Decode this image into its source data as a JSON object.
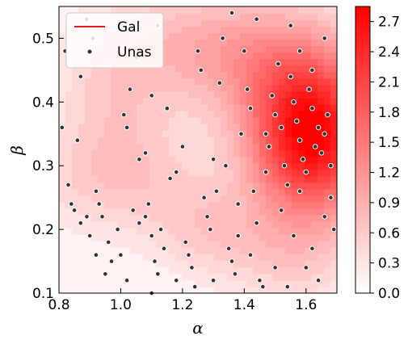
{
  "chart_data": {
    "type": "scatter",
    "subtype": "filled-contour-with-scatter-overlay",
    "xlabel": "α",
    "ylabel": "β",
    "xlim": [
      0.8,
      1.7
    ],
    "ylim": [
      0.1,
      0.55
    ],
    "xticks": [
      "0.8",
      "1.0",
      "1.2",
      "1.4",
      "1.6"
    ],
    "xtick_values": [
      0.8,
      1.0,
      1.2,
      1.4,
      1.6
    ],
    "yticks": [
      "0.1",
      "0.2",
      "0.3",
      "0.4",
      "0.5"
    ],
    "ytick_values": [
      0.1,
      0.2,
      0.3,
      0.4,
      0.5
    ],
    "grid": false,
    "legend_position": "top-left",
    "legend": [
      {
        "label": "Gal",
        "marker": "line",
        "color": "#e31a1c"
      },
      {
        "label": "Unas",
        "marker": "dot",
        "color": "#333333"
      }
    ],
    "colorbar": {
      "colormap": "white-to-red",
      "min": 0.0,
      "max": 2.85,
      "ticks": [
        "0.0",
        "0.3",
        "0.6",
        "0.9",
        "1.2",
        "1.5",
        "1.8",
        "2.1",
        "2.4",
        "2.7"
      ],
      "tick_values": [
        0.0,
        0.3,
        0.6,
        0.9,
        1.2,
        1.5,
        1.8,
        2.1,
        2.4,
        2.7
      ],
      "color_low": "#ffffff",
      "color_high": "#ff0000"
    },
    "density_peaks": [
      {
        "alpha": 1.62,
        "beta": 0.345,
        "height": 2.75,
        "s_alpha": 0.14,
        "s_beta": 0.085
      },
      {
        "alpha": 1.45,
        "beta": 0.47,
        "height": 0.9,
        "s_alpha": 0.2,
        "s_beta": 0.07
      },
      {
        "alpha": 1.2,
        "beta": 0.5,
        "height": 0.35,
        "s_alpha": 0.15,
        "s_beta": 0.06
      },
      {
        "alpha": 0.98,
        "beta": 0.42,
        "height": 0.5,
        "s_alpha": 0.13,
        "s_beta": 0.09
      },
      {
        "alpha": 1.0,
        "beta": 0.28,
        "height": 0.5,
        "s_alpha": 0.2,
        "s_beta": 0.06
      },
      {
        "alpha": 1.28,
        "beta": 0.2,
        "height": 0.45,
        "s_alpha": 0.13,
        "s_beta": 0.05
      },
      {
        "alpha": 1.55,
        "beta": 0.16,
        "height": 0.45,
        "s_alpha": 0.15,
        "s_beta": 0.06
      }
    ],
    "series": [
      {
        "name": "Unas",
        "points": [
          [
            0.81,
            0.36
          ],
          [
            0.82,
            0.48
          ],
          [
            0.86,
            0.34
          ],
          [
            0.87,
            0.44
          ],
          [
            0.89,
            0.53
          ],
          [
            0.91,
            0.5
          ],
          [
            0.83,
            0.27
          ],
          [
            0.84,
            0.24
          ],
          [
            0.85,
            0.23
          ],
          [
            0.87,
            0.21
          ],
          [
            0.89,
            0.22
          ],
          [
            0.9,
            0.19
          ],
          [
            0.92,
            0.26
          ],
          [
            0.93,
            0.24
          ],
          [
            0.94,
            0.22
          ],
          [
            0.96,
            0.18
          ],
          [
            0.97,
            0.15
          ],
          [
            0.95,
            0.13
          ],
          [
            0.99,
            0.2
          ],
          [
            1.0,
            0.16
          ],
          [
            1.01,
            0.38
          ],
          [
            1.02,
            0.36
          ],
          [
            1.03,
            0.42
          ],
          [
            1.05,
            0.47
          ],
          [
            1.06,
            0.31
          ],
          [
            1.08,
            0.32
          ],
          [
            1.1,
            0.41
          ],
          [
            1.12,
            0.52
          ],
          [
            1.04,
            0.23
          ],
          [
            1.06,
            0.21
          ],
          [
            1.08,
            0.22
          ],
          [
            1.09,
            0.24
          ],
          [
            1.1,
            0.19
          ],
          [
            1.11,
            0.15
          ],
          [
            1.12,
            0.13
          ],
          [
            1.13,
            0.2
          ],
          [
            1.14,
            0.17
          ],
          [
            1.15,
            0.39
          ],
          [
            1.16,
            0.28
          ],
          [
            1.18,
            0.29
          ],
          [
            1.2,
            0.33
          ],
          [
            1.21,
            0.18
          ],
          [
            1.22,
            0.16
          ],
          [
            1.23,
            0.14
          ],
          [
            1.24,
            0.11
          ],
          [
            1.25,
            0.48
          ],
          [
            1.26,
            0.45
          ],
          [
            1.27,
            0.25
          ],
          [
            1.28,
            0.22
          ],
          [
            1.29,
            0.2
          ],
          [
            1.3,
            0.31
          ],
          [
            1.31,
            0.26
          ],
          [
            1.32,
            0.43
          ],
          [
            1.33,
            0.5
          ],
          [
            1.34,
            0.3
          ],
          [
            1.35,
            0.17
          ],
          [
            1.36,
            0.15
          ],
          [
            1.37,
            0.13
          ],
          [
            1.38,
            0.24
          ],
          [
            1.39,
            0.35
          ],
          [
            1.4,
            0.48
          ],
          [
            1.41,
            0.42
          ],
          [
            1.42,
            0.39
          ],
          [
            1.43,
            0.26
          ],
          [
            1.44,
            0.21
          ],
          [
            1.45,
            0.12
          ],
          [
            1.46,
            0.11
          ],
          [
            1.47,
            0.35
          ],
          [
            1.48,
            0.33
          ],
          [
            1.49,
            0.41
          ],
          [
            1.5,
            0.38
          ],
          [
            1.51,
            0.46
          ],
          [
            1.52,
            0.36
          ],
          [
            1.53,
            0.3
          ],
          [
            1.54,
            0.27
          ],
          [
            1.55,
            0.44
          ],
          [
            1.56,
            0.4
          ],
          [
            1.57,
            0.37
          ],
          [
            1.58,
            0.34
          ],
          [
            1.59,
            0.31
          ],
          [
            1.6,
            0.29
          ],
          [
            1.61,
            0.42
          ],
          [
            1.62,
            0.39
          ],
          [
            1.63,
            0.33
          ],
          [
            1.64,
            0.36
          ],
          [
            1.65,
            0.32
          ],
          [
            1.66,
            0.35
          ],
          [
            1.67,
            0.38
          ],
          [
            1.68,
            0.25
          ],
          [
            1.69,
            0.2
          ],
          [
            1.55,
            0.52
          ],
          [
            1.58,
            0.48
          ],
          [
            1.62,
            0.45
          ],
          [
            1.66,
            0.5
          ],
          [
            1.52,
            0.23
          ],
          [
            1.56,
            0.19
          ],
          [
            1.6,
            0.14
          ],
          [
            1.64,
            0.12
          ],
          [
            1.5,
            0.14
          ],
          [
            1.42,
            0.16
          ],
          [
            1.38,
            0.19
          ],
          [
            1.3,
            0.12
          ],
          [
            1.18,
            0.12
          ],
          [
            1.1,
            0.1
          ],
          [
            1.02,
            0.12
          ],
          [
            0.92,
            0.16
          ],
          [
            1.44,
            0.53
          ],
          [
            1.36,
            0.54
          ],
          [
            1.47,
            0.29
          ],
          [
            1.58,
            0.26
          ],
          [
            1.66,
            0.22
          ],
          [
            1.62,
            0.17
          ],
          [
            1.54,
            0.11
          ],
          [
            1.68,
            0.3
          ]
        ]
      }
    ]
  }
}
